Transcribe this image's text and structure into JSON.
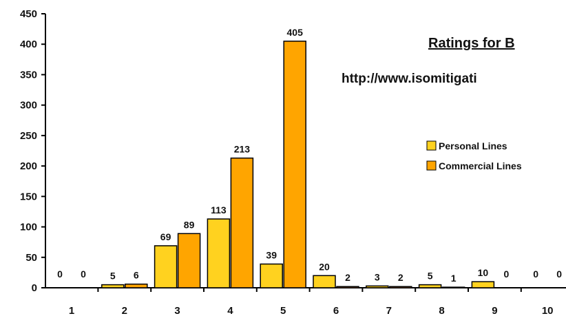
{
  "chart_data": {
    "type": "bar",
    "title": "Ratings for B",
    "subtitle": "http://www.isomitigati",
    "categories": [
      "1",
      "2",
      "3",
      "4",
      "5",
      "6",
      "7",
      "8",
      "9",
      "10"
    ],
    "series": [
      {
        "name": "Personal Lines",
        "color": "#FFD21F",
        "values": [
          0,
          5,
          69,
          113,
          39,
          20,
          3,
          5,
          10,
          0
        ]
      },
      {
        "name": "Commercial Lines",
        "color": "#FFA500",
        "values": [
          0,
          6,
          89,
          213,
          405,
          2,
          2,
          1,
          0,
          0
        ]
      }
    ],
    "data_labels": [
      [
        "0",
        "5",
        "69",
        "113",
        "39",
        "20",
        "3",
        "5",
        "10",
        "0"
      ],
      [
        "0",
        "6",
        "89",
        "213",
        "405",
        "2",
        "2",
        "1",
        "0",
        "0"
      ]
    ],
    "yticks": [
      "0",
      "50",
      "100",
      "150",
      "200",
      "250",
      "300",
      "350",
      "400",
      "450"
    ],
    "ylim": [
      0,
      450
    ],
    "legend_position": "right",
    "grid": false,
    "xlabel": "",
    "ylabel": ""
  }
}
